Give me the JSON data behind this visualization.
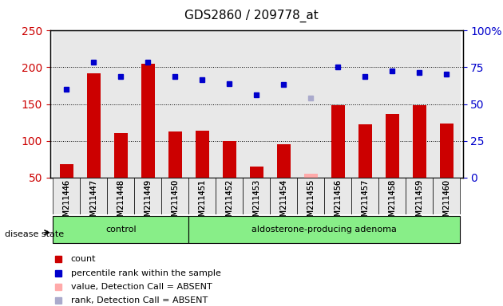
{
  "title": "GDS2860 / 209778_at",
  "samples": [
    "GSM211446",
    "GSM211447",
    "GSM211448",
    "GSM211449",
    "GSM211450",
    "GSM211451",
    "GSM211452",
    "GSM211453",
    "GSM211454",
    "GSM211455",
    "GSM211456",
    "GSM211457",
    "GSM211458",
    "GSM211459",
    "GSM211460"
  ],
  "bar_values": [
    68,
    192,
    110,
    205,
    113,
    114,
    100,
    65,
    95,
    55,
    148,
    122,
    136,
    148,
    124
  ],
  "bar_absent": [
    false,
    false,
    false,
    false,
    false,
    false,
    false,
    false,
    false,
    true,
    false,
    false,
    false,
    false,
    false
  ],
  "rank_values": [
    170,
    207,
    188,
    207,
    188,
    183,
    178,
    163,
    177,
    158,
    200,
    188,
    195,
    193,
    191
  ],
  "rank_absent": [
    false,
    false,
    false,
    false,
    false,
    false,
    false,
    false,
    false,
    true,
    false,
    false,
    false,
    false,
    false
  ],
  "ylim_left": [
    50,
    250
  ],
  "ylim_right": [
    0,
    100
  ],
  "bar_color": "#cc0000",
  "bar_absent_color": "#ffaaaa",
  "rank_color": "#0000cc",
  "rank_absent_color": "#aaaacc",
  "group_labels": [
    "control",
    "aldosterone-producing adenoma"
  ],
  "group_ranges": [
    5,
    10
  ],
  "group_color": "#88ee88",
  "disease_state_label": "disease state",
  "yticks_left": [
    50,
    100,
    150,
    200,
    250
  ],
  "yticks_right": [
    0,
    25,
    50,
    75,
    100
  ],
  "ytick_labels_right": [
    "0",
    "25",
    "50",
    "75",
    "100%"
  ],
  "background_color": "#e8e8e8",
  "plot_bg": "#ffffff"
}
